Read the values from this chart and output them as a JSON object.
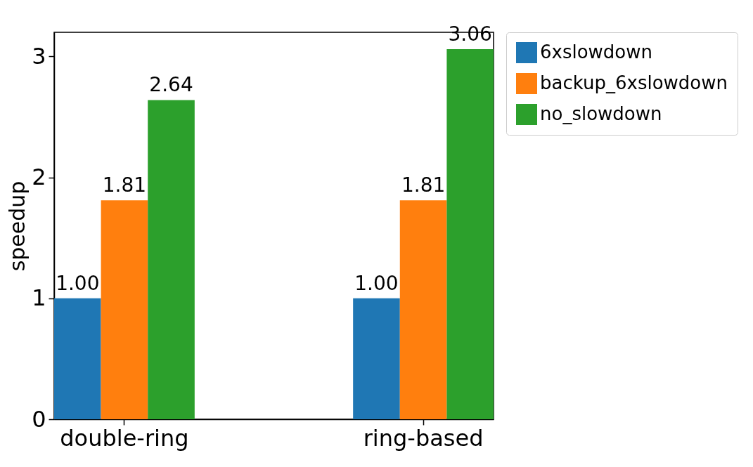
{
  "chart_data": {
    "type": "bar",
    "ylabel": "speedup",
    "categories": [
      "double-ring",
      "ring-based"
    ],
    "series": [
      {
        "name": "6xslowdown",
        "color": "#1f77b4",
        "values": [
          1.0,
          1.0
        ],
        "value_labels": [
          "1.00",
          "1.00"
        ]
      },
      {
        "name": "backup_6xslowdown",
        "color": "#ff7f0e",
        "values": [
          1.81,
          1.81
        ],
        "value_labels": [
          "1.81",
          "1.81"
        ]
      },
      {
        "name": "no_slowdown",
        "color": "#2ca02c",
        "values": [
          2.64,
          3.06
        ],
        "value_labels": [
          "2.64",
          "3.06"
        ]
      }
    ],
    "ylim": [
      0,
      3.2
    ],
    "yticks": [
      0,
      1,
      2,
      3
    ],
    "legend": "right",
    "grid": false
  }
}
